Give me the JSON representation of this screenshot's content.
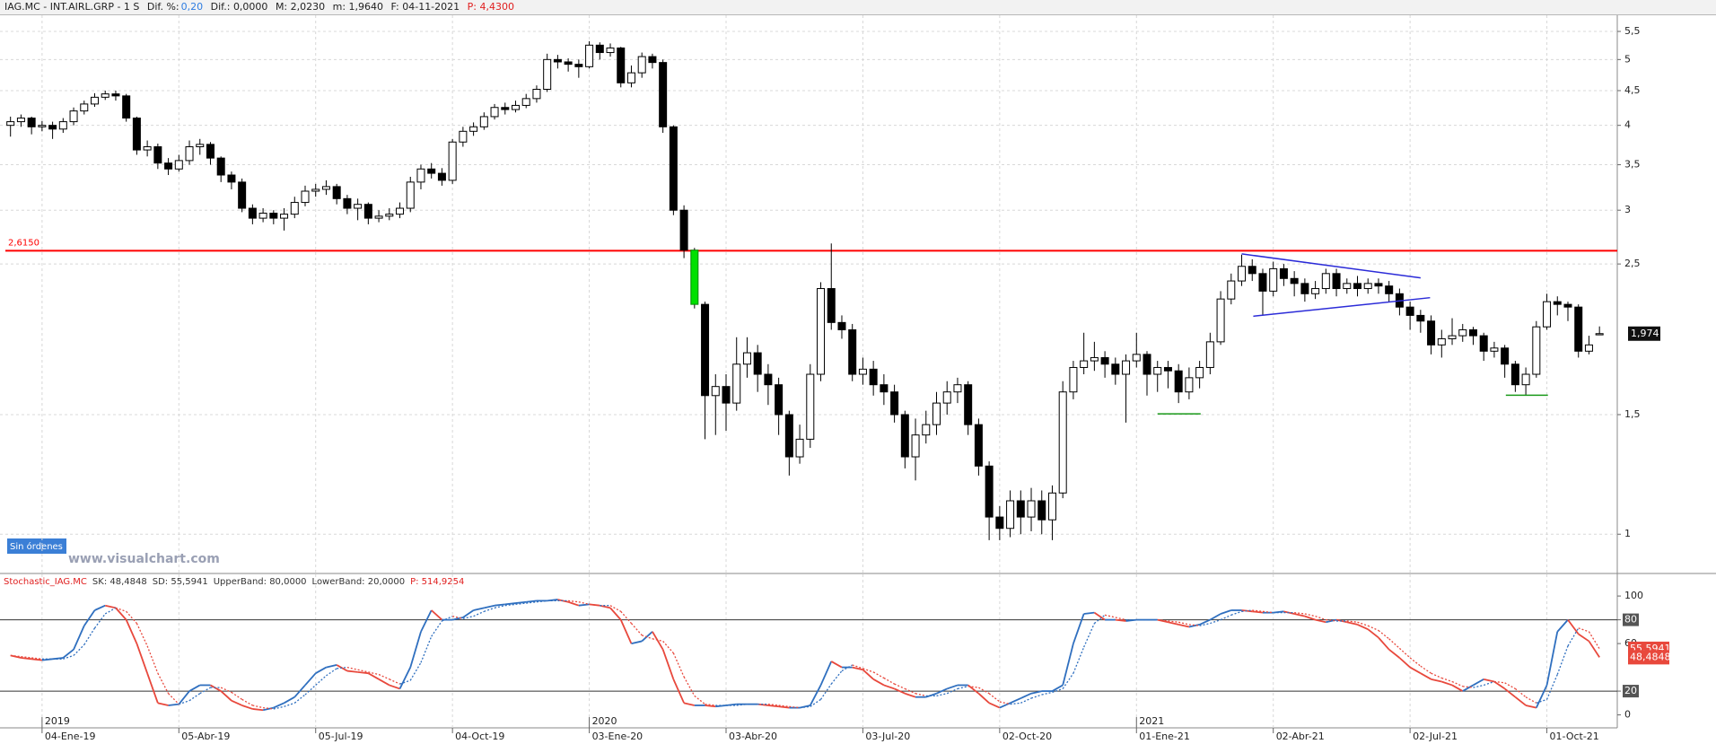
{
  "header": {
    "items": [
      "IAG.MC - INT.AIRL.GRP - 1 S",
      "Dif. %:",
      "0,20",
      "Dif.: 0,0000",
      "M: 2,0230",
      "m: 1,9640",
      "F: 04-11-2021",
      "P: 4,4300"
    ]
  },
  "annotations": {
    "orders": "Sin órdenes",
    "watermark": "www.visualchart.com"
  },
  "chart_data": [
    {
      "type": "candlestick",
      "log_scale": true,
      "grid": true,
      "ylim": [
        0.878,
        5.81
      ],
      "yticks": [
        1,
        {
          "value": 1.5,
          "label": "1,5"
        },
        {
          "value": 2.5,
          "label": "2,5"
        },
        3,
        {
          "value": 3.5,
          "label": "3,5"
        },
        4,
        {
          "value": 4.5,
          "label": "4,5"
        },
        5,
        {
          "value": 5.5,
          "label": "5,5"
        }
      ],
      "up_color": "#ffffff",
      "down_color": "#000000",
      "highlight_index": 65,
      "highlight_color": "#00e000",
      "open": [
        4.0,
        4.05,
        4.1,
        3.98,
        4.0,
        3.95,
        4.05,
        4.2,
        4.3,
        4.4,
        4.45,
        4.42,
        4.1,
        3.68,
        3.72,
        3.52,
        3.45,
        3.55,
        3.72,
        3.75,
        3.58,
        3.38,
        3.3,
        3.02,
        2.92,
        2.97,
        2.92,
        2.96,
        3.08,
        3.2,
        3.22,
        3.25,
        3.12,
        3.02,
        3.06,
        2.92,
        2.94,
        2.96,
        3.02,
        3.3,
        3.45,
        3.4,
        3.32,
        3.78,
        3.92,
        3.98,
        4.12,
        4.25,
        4.22,
        4.28,
        4.38,
        4.52,
        5.0,
        4.96,
        4.92,
        4.88,
        5.25,
        5.12,
        5.2,
        4.62,
        4.78,
        5.05,
        4.95,
        3.98,
        3.0,
        2.62,
        2.18,
        1.6,
        1.65,
        1.56,
        1.78,
        1.85,
        1.72,
        1.66,
        1.5,
        1.3,
        1.38,
        1.72,
        2.3,
        2.05,
        2.0,
        1.72,
        1.75,
        1.66,
        1.62,
        1.5,
        1.3,
        1.4,
        1.45,
        1.56,
        1.62,
        1.66,
        1.45,
        1.26,
        1.06,
        1.02,
        1.12,
        1.06,
        1.12,
        1.05,
        1.15,
        1.62,
        1.76,
        1.8,
        1.82,
        1.78,
        1.72,
        1.8,
        1.84,
        1.72,
        1.76,
        1.74,
        1.62,
        1.7,
        1.76,
        1.92,
        2.22,
        2.36,
        2.48,
        2.42,
        2.28,
        2.46,
        2.38,
        2.34,
        2.26,
        2.3,
        2.42,
        2.3,
        2.34,
        2.3,
        2.34,
        2.32,
        2.26,
        2.16,
        2.1,
        2.06,
        1.9,
        1.94,
        1.96,
        2.0,
        1.96,
        1.86,
        1.88,
        1.78,
        1.66,
        1.72,
        2.02,
        2.2,
        2.18,
        2.16,
        1.86,
        1.966
      ],
      "high": [
        4.12,
        4.15,
        4.12,
        4.06,
        4.05,
        4.1,
        4.25,
        4.35,
        4.46,
        4.5,
        4.5,
        4.45,
        4.12,
        3.8,
        3.76,
        3.58,
        3.62,
        3.8,
        3.82,
        3.78,
        3.6,
        3.42,
        3.34,
        3.06,
        3.02,
        3.0,
        3.02,
        3.14,
        3.26,
        3.28,
        3.32,
        3.28,
        3.16,
        3.12,
        3.08,
        3.0,
        3.02,
        3.08,
        3.36,
        3.5,
        3.52,
        3.46,
        3.82,
        3.98,
        4.04,
        4.18,
        4.3,
        4.32,
        4.35,
        4.45,
        4.58,
        5.1,
        5.08,
        5.02,
        5.0,
        5.32,
        5.3,
        5.28,
        5.22,
        4.9,
        5.12,
        5.1,
        5.0,
        4.0,
        3.05,
        2.64,
        2.2,
        1.72,
        1.72,
        1.95,
        1.95,
        1.9,
        1.78,
        1.7,
        1.52,
        1.45,
        1.78,
        2.35,
        2.68,
        2.1,
        2.04,
        1.82,
        1.8,
        1.72,
        1.66,
        1.52,
        1.48,
        1.52,
        1.62,
        1.68,
        1.7,
        1.68,
        1.48,
        1.28,
        1.1,
        1.16,
        1.16,
        1.17,
        1.16,
        1.18,
        1.68,
        1.8,
        1.98,
        1.92,
        1.86,
        1.82,
        1.84,
        1.98,
        1.86,
        1.8,
        1.8,
        1.78,
        1.76,
        1.8,
        1.98,
        2.28,
        2.42,
        2.58,
        2.54,
        2.46,
        2.52,
        2.5,
        2.44,
        2.38,
        2.36,
        2.46,
        2.46,
        2.38,
        2.4,
        2.38,
        2.38,
        2.36,
        2.3,
        2.2,
        2.14,
        2.1,
        2.0,
        2.08,
        2.04,
        2.02,
        1.98,
        1.92,
        1.9,
        1.8,
        1.76,
        2.06,
        2.26,
        2.24,
        2.2,
        2.18,
        1.96,
        2.023
      ],
      "low": [
        3.85,
        3.98,
        3.88,
        3.92,
        3.82,
        3.9,
        4.0,
        4.15,
        4.26,
        4.36,
        4.35,
        4.05,
        3.62,
        3.6,
        3.45,
        3.38,
        3.42,
        3.5,
        3.62,
        3.5,
        3.3,
        3.22,
        2.98,
        2.86,
        2.88,
        2.86,
        2.8,
        2.92,
        3.04,
        3.14,
        3.16,
        3.06,
        2.96,
        2.9,
        2.86,
        2.88,
        2.9,
        2.92,
        2.98,
        3.22,
        3.34,
        3.26,
        3.28,
        3.72,
        3.86,
        3.94,
        4.08,
        4.15,
        4.18,
        4.24,
        4.32,
        4.48,
        4.85,
        4.8,
        4.7,
        4.85,
        5.0,
        5.05,
        4.55,
        4.55,
        4.7,
        4.85,
        3.9,
        2.95,
        2.55,
        2.15,
        1.38,
        1.4,
        1.42,
        1.52,
        1.7,
        1.62,
        1.55,
        1.4,
        1.22,
        1.27,
        1.34,
        1.68,
        2.0,
        1.94,
        1.68,
        1.66,
        1.6,
        1.55,
        1.46,
        1.25,
        1.2,
        1.36,
        1.4,
        1.5,
        1.56,
        1.4,
        1.22,
        0.98,
        0.98,
        0.99,
        1.0,
        1.01,
        1.0,
        0.98,
        1.13,
        1.58,
        1.72,
        1.74,
        1.7,
        1.66,
        1.46,
        1.76,
        1.6,
        1.62,
        1.64,
        1.56,
        1.58,
        1.64,
        1.72,
        1.9,
        2.18,
        2.32,
        2.36,
        2.1,
        2.24,
        2.32,
        2.24,
        2.2,
        2.22,
        2.26,
        2.24,
        2.26,
        2.24,
        2.26,
        2.26,
        2.2,
        2.1,
        2.0,
        1.98,
        1.84,
        1.82,
        1.9,
        1.92,
        1.9,
        1.8,
        1.82,
        1.7,
        1.62,
        1.6,
        1.7,
        2.0,
        2.1,
        2.06,
        1.82,
        1.84,
        1.964
      ],
      "close": [
        4.05,
        4.1,
        3.98,
        4.0,
        3.95,
        4.05,
        4.2,
        4.3,
        4.4,
        4.45,
        4.42,
        4.1,
        3.68,
        3.72,
        3.52,
        3.45,
        3.55,
        3.72,
        3.75,
        3.58,
        3.38,
        3.3,
        3.02,
        2.92,
        2.97,
        2.92,
        2.96,
        3.08,
        3.2,
        3.22,
        3.25,
        3.12,
        3.02,
        3.06,
        2.92,
        2.94,
        2.96,
        3.02,
        3.3,
        3.45,
        3.4,
        3.32,
        3.78,
        3.92,
        3.98,
        4.12,
        4.25,
        4.22,
        4.28,
        4.38,
        4.52,
        5.0,
        4.96,
        4.92,
        4.88,
        5.25,
        5.12,
        5.2,
        4.62,
        4.78,
        5.05,
        4.95,
        3.98,
        3.0,
        2.62,
        2.18,
        1.6,
        1.65,
        1.56,
        1.78,
        1.85,
        1.72,
        1.66,
        1.5,
        1.3,
        1.38,
        1.72,
        2.3,
        2.05,
        2.0,
        1.72,
        1.75,
        1.66,
        1.62,
        1.5,
        1.3,
        1.4,
        1.45,
        1.56,
        1.62,
        1.66,
        1.45,
        1.26,
        1.06,
        1.02,
        1.12,
        1.06,
        1.12,
        1.05,
        1.15,
        1.62,
        1.76,
        1.8,
        1.82,
        1.78,
        1.72,
        1.8,
        1.84,
        1.72,
        1.76,
        1.74,
        1.62,
        1.7,
        1.76,
        1.92,
        2.22,
        2.36,
        2.48,
        2.42,
        2.28,
        2.46,
        2.38,
        2.34,
        2.26,
        2.3,
        2.42,
        2.3,
        2.34,
        2.3,
        2.34,
        2.32,
        2.26,
        2.16,
        2.1,
        2.06,
        1.9,
        1.94,
        1.96,
        2.0,
        1.96,
        1.86,
        1.88,
        1.78,
        1.66,
        1.72,
        2.02,
        2.2,
        2.18,
        2.16,
        1.86,
        1.9,
        1.974
      ],
      "last_label": "1,974",
      "hline": {
        "value": 2.615,
        "label": "2,6150",
        "color": "#ff0000"
      },
      "trendlines": [
        {
          "x": [
            117,
            134
          ],
          "y": [
            2.587,
            2.385
          ],
          "color": "#2b2bd8"
        },
        {
          "x": [
            118.1,
            134.9
          ],
          "y": [
            2.094,
            2.23
          ],
          "color": "#2b2bd8"
        },
        {
          "x": [
            109,
            113.1
          ],
          "y": [
            1.504,
            1.504
          ],
          "color": "#1a9a1a"
        },
        {
          "x": [
            142.1,
            146.1
          ],
          "y": [
            1.602,
            1.602
          ],
          "color": "#1a9a1a"
        }
      ]
    },
    {
      "type": "stochastic",
      "grid": true,
      "header": [
        "Stochastic_IAG.MC",
        "SK: 48,4848",
        "SD: 55,5941",
        "UpperBand: 80,0000",
        "LowerBand: 20,0000",
        "P: 514,9254"
      ],
      "categories": [
        null,
        null,
        null,
        "04-Ene-19",
        null,
        null,
        null,
        null,
        null,
        null,
        null,
        null,
        null,
        null,
        null,
        null,
        "05-Abr-19",
        null,
        null,
        null,
        null,
        null,
        null,
        null,
        null,
        null,
        null,
        null,
        null,
        "05-Jul-19",
        null,
        null,
        null,
        null,
        null,
        null,
        null,
        null,
        null,
        null,
        null,
        null,
        "04-Oct-19",
        null,
        null,
        null,
        null,
        null,
        null,
        null,
        null,
        null,
        null,
        null,
        null,
        "03-Ene-20",
        null,
        null,
        null,
        null,
        null,
        null,
        null,
        null,
        null,
        null,
        null,
        null,
        "03-Abr-20",
        null,
        null,
        null,
        null,
        null,
        null,
        null,
        null,
        null,
        null,
        null,
        null,
        "03-Jul-20",
        null,
        null,
        null,
        null,
        null,
        null,
        null,
        null,
        null,
        null,
        null,
        null,
        "02-Oct-20",
        null,
        null,
        null,
        null,
        null,
        null,
        null,
        null,
        null,
        null,
        null,
        null,
        "01-Ene-21",
        null,
        null,
        null,
        null,
        null,
        null,
        null,
        null,
        null,
        null,
        null,
        null,
        "02-Abr-21",
        null,
        null,
        null,
        null,
        null,
        null,
        null,
        null,
        null,
        null,
        null,
        null,
        "02-Jul-21",
        null,
        null,
        null,
        null,
        null,
        null,
        null,
        null,
        null,
        null,
        null,
        null,
        "01-Oct-21",
        null,
        null,
        null,
        null,
        null
      ],
      "year_labels": [
        {
          "value": 3,
          "label": "2019"
        },
        {
          "value": 55,
          "label": "2020"
        },
        {
          "value": 107,
          "label": "2021"
        }
      ],
      "ylim": [
        -10.9,
        118.2
      ],
      "yticks": [
        0,
        20,
        60,
        80,
        100
      ],
      "bands": [
        80,
        20
      ],
      "rise_color": "#2f6fbf",
      "fall_color": "#e8483c",
      "band_color": "#333333",
      "series": [
        {
          "style": "solid",
          "last_label": "48,4848",
          "values": [
            50,
            48,
            47,
            46,
            47,
            48,
            55,
            75,
            88,
            92,
            90,
            80,
            60,
            35,
            10,
            8,
            9,
            20,
            25,
            25,
            20,
            12,
            8,
            5,
            4,
            6,
            10,
            15,
            25,
            35,
            40,
            42,
            37,
            36,
            35,
            30,
            25,
            22,
            40,
            70,
            88,
            80,
            80,
            82,
            88,
            90,
            92,
            93,
            94,
            95,
            96,
            96,
            97,
            95,
            92,
            93,
            92,
            90,
            80,
            60,
            62,
            70,
            55,
            30,
            10,
            8,
            8,
            7,
            8,
            9,
            9,
            9,
            8,
            7,
            6,
            6,
            8,
            25,
            45,
            40,
            40,
            38,
            30,
            25,
            22,
            18,
            15,
            15,
            18,
            22,
            25,
            25,
            18,
            10,
            6,
            10,
            14,
            18,
            20,
            20,
            25,
            60,
            85,
            86,
            80,
            80,
            79,
            80,
            80,
            80,
            78,
            76,
            74,
            76,
            80,
            85,
            88,
            88,
            87,
            86,
            86,
            87,
            85,
            83,
            80,
            78,
            80,
            78,
            76,
            72,
            65,
            55,
            48,
            40,
            35,
            30,
            28,
            25,
            20,
            25,
            30,
            28,
            22,
            15,
            8,
            6,
            25,
            70,
            80,
            68,
            62,
            48.4848
          ]
        },
        {
          "style": "dashed",
          "last_label": "55,5941",
          "values": [
            50,
            49,
            48,
            47,
            47,
            47,
            50,
            59,
            73,
            85,
            90,
            87,
            77,
            58,
            35,
            18,
            9,
            12,
            18,
            23,
            23,
            19,
            13,
            8,
            6,
            5,
            7,
            10,
            17,
            25,
            33,
            39,
            40,
            38,
            36,
            34,
            30,
            26,
            29,
            44,
            66,
            79,
            83,
            81,
            83,
            87,
            90,
            92,
            93,
            94,
            95,
            96,
            96,
            96,
            95,
            93,
            92,
            92,
            87,
            77,
            67,
            64,
            62,
            52,
            32,
            16,
            9,
            8,
            8,
            8,
            9,
            9,
            9,
            8,
            7,
            6,
            7,
            13,
            26,
            37,
            42,
            39,
            36,
            31,
            26,
            22,
            18,
            16,
            16,
            18,
            22,
            24,
            23,
            18,
            11,
            9,
            10,
            14,
            17,
            19,
            22,
            35,
            57,
            77,
            84,
            82,
            80,
            80,
            80,
            80,
            79,
            78,
            76,
            75,
            77,
            80,
            84,
            87,
            88,
            87,
            86,
            86,
            86,
            85,
            83,
            80,
            79,
            79,
            78,
            75,
            71,
            64,
            56,
            48,
            41,
            35,
            31,
            28,
            24,
            23,
            25,
            28,
            27,
            22,
            15,
            10,
            13,
            34,
            58,
            73,
            70,
            55.5941
          ]
        }
      ]
    }
  ]
}
